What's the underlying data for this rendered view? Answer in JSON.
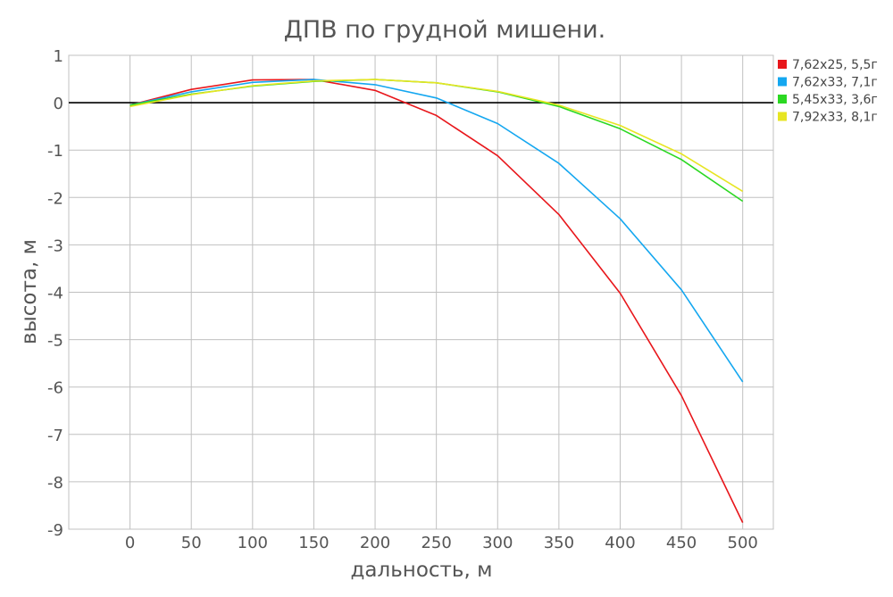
{
  "chart_data": {
    "type": "line",
    "title": "ДПВ по грудной мишени.",
    "xlabel": "дальность, м",
    "ylabel": "высота, м",
    "x": [
      0,
      50,
      100,
      150,
      200,
      250,
      300,
      350,
      400,
      450,
      500
    ],
    "xlim": [
      -50,
      525
    ],
    "ylim": [
      -9,
      1
    ],
    "xticks": [
      0,
      50,
      100,
      150,
      200,
      250,
      300,
      350,
      400,
      450,
      500
    ],
    "yticks": [
      1,
      0,
      -1,
      -2,
      -3,
      -4,
      -5,
      -6,
      -7,
      -8,
      -9
    ],
    "grid": true,
    "legend_position": "top-right",
    "series": [
      {
        "name": "7,62x25, 5,5г",
        "color": "#e8161b",
        "values": [
          -0.05,
          0.28,
          0.48,
          0.49,
          0.26,
          -0.27,
          -1.12,
          -2.36,
          -4.02,
          -6.18,
          -8.86
        ]
      },
      {
        "name": "7,62x33, 7,1г",
        "color": "#14a7f0",
        "values": [
          -0.05,
          0.23,
          0.43,
          0.49,
          0.38,
          0.1,
          -0.44,
          -1.28,
          -2.45,
          -3.95,
          -5.89
        ]
      },
      {
        "name": "5,45x33, 3,6г",
        "color": "#2bd822",
        "values": [
          -0.05,
          0.18,
          0.35,
          0.45,
          0.49,
          0.42,
          0.23,
          -0.08,
          -0.55,
          -1.2,
          -2.08
        ]
      },
      {
        "name": "7,92x33, 8,1г",
        "color": "#e7e523",
        "values": [
          -0.08,
          0.17,
          0.36,
          0.46,
          0.49,
          0.42,
          0.24,
          -0.05,
          -0.48,
          -1.08,
          -1.87
        ]
      }
    ]
  }
}
